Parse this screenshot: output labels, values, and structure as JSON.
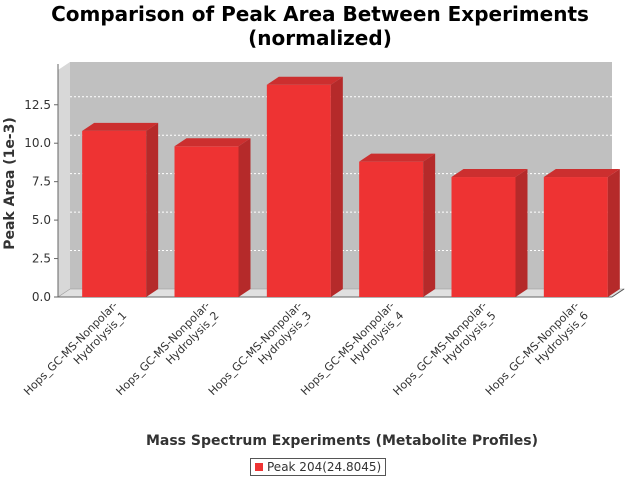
{
  "chart_data": {
    "type": "bar",
    "title_lines": [
      "Comparison of Peak Area Between Experiments",
      "(normalized)"
    ],
    "xlabel": "Mass Spectrum Experiments (Metabolite Profiles)",
    "ylabel": "Peak Area (1e-3)",
    "categories": [
      [
        "Hops_GC-MS-Nonpolar-",
        "Hydrolysis_1"
      ],
      [
        "Hops_GC-MS-Nonpolar-",
        "Hydrolysis_2"
      ],
      [
        "Hops_GC-MS-Nonpolar-",
        "Hydrolysis_3"
      ],
      [
        "Hops_GC-MS-Nonpolar-",
        "Hydrolysis_4"
      ],
      [
        "Hops_GC-MS-Nonpolar-",
        "Hydrolysis_5"
      ],
      [
        "Hops_GC-MS-Nonpolar-",
        "Hydrolysis_6"
      ]
    ],
    "series": [
      {
        "name": "Peak 204(24.8045)",
        "values": [
          10.8,
          9.8,
          13.8,
          8.8,
          7.8,
          7.8
        ],
        "color": "#ee3333"
      }
    ],
    "yticks": [
      "0.0",
      "2.5",
      "5.0",
      "7.5",
      "10.0",
      "12.5"
    ],
    "ytick_values": [
      0,
      2.5,
      5,
      7.5,
      10,
      12.5
    ],
    "ylim": [
      0,
      14.5
    ],
    "grid": true,
    "legend_position": "bottom",
    "plot_background": "#c0c0c0"
  }
}
